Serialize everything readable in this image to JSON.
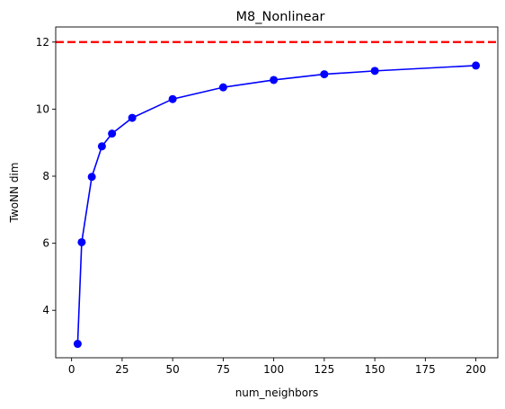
{
  "chart_data": {
    "type": "line",
    "title": "M8_Nonlinear",
    "xlabel": "num_neighbors",
    "ylabel": "TwoNN dim",
    "x": [
      3,
      5,
      10,
      15,
      20,
      30,
      50,
      75,
      100,
      125,
      150,
      200
    ],
    "series": [
      {
        "values": [
          3.0,
          6.03,
          7.98,
          8.89,
          9.27,
          9.74,
          10.3,
          10.65,
          10.87,
          11.04,
          11.14,
          11.3
        ],
        "color": "#0000ff",
        "marker": "circle"
      }
    ],
    "reference_line": {
      "y": 12,
      "color": "#ff0000",
      "style": "dashed"
    },
    "xlim": [
      -7.85,
      210.85
    ],
    "ylim": [
      2.585,
      12.45
    ],
    "xticks": [
      0,
      25,
      50,
      75,
      100,
      125,
      150,
      175,
      200
    ],
    "yticks": [
      4,
      6,
      8,
      10,
      12
    ],
    "grid": false
  }
}
